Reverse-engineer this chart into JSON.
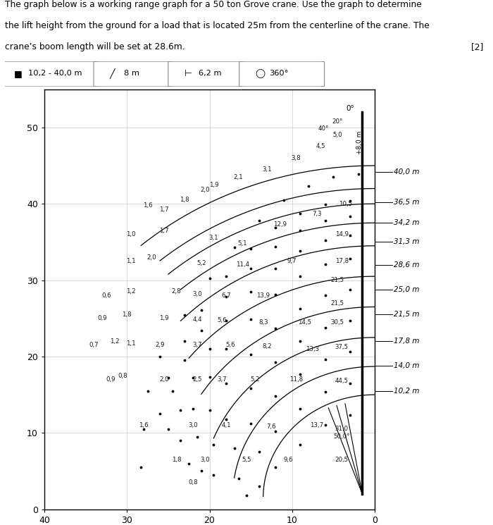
{
  "title_line1": "The graph below is a working range graph for a 50 ton Grove crane. Use the graph to determine",
  "title_line2": "the lift height from the ground for a load that is located 25m from the centerline of the crane. The",
  "title_line3": "crane’s boom length will be set at 28.6m.",
  "title_mark": "[2]",
  "spec1": "10,2 - 40,0 m",
  "spec2": "8 m",
  "spec3": "6,2 m",
  "spec4": "360°",
  "boom_labels": [
    "40,0 m",
    "36,5 m",
    "34,2 m",
    "31,3 m",
    "28,6 m",
    "25,0 m",
    "21,5 m",
    "17,8 m",
    "14,0 m",
    "10,2 m"
  ],
  "boom_y_pos": [
    44.2,
    40.2,
    37.5,
    35.0,
    32.0,
    28.8,
    25.5,
    22.0,
    18.8,
    15.5
  ],
  "curves": [
    {
      "R": 43.5,
      "y_c": 1.5,
      "x_end": 28.3
    },
    {
      "R": 40.5,
      "y_c": 1.5,
      "x_end": 26.0
    },
    {
      "R": 38.5,
      "y_c": 1.5,
      "x_end": 25.0
    },
    {
      "R": 36.0,
      "y_c": 1.5,
      "x_end": 23.5
    },
    {
      "R": 33.0,
      "y_c": 1.5,
      "x_end": 23.5
    },
    {
      "R": 29.0,
      "y_c": 1.5,
      "x_end": 22.5
    },
    {
      "R": 25.0,
      "y_c": 1.5,
      "x_end": 21.0
    },
    {
      "R": 21.0,
      "y_c": 1.5,
      "x_end": 19.5
    },
    {
      "R": 17.2,
      "y_c": 1.5,
      "x_end": 17.0
    },
    {
      "R": 13.5,
      "y_c": 1.5,
      "x_end": 15.5
    }
  ],
  "dots_per_curve": [
    [
      [
        2,
        43.9
      ],
      [
        5,
        43.5
      ],
      [
        8,
        42.3
      ],
      [
        11,
        40.5
      ],
      [
        14,
        37.8
      ],
      [
        17,
        34.3
      ],
      [
        20,
        30.2
      ],
      [
        23,
        25.4
      ],
      [
        26,
        20.0
      ],
      [
        27.5,
        15.5
      ],
      [
        28.0,
        10.5
      ],
      [
        28.3,
        5.5
      ]
    ],
    [
      [
        3,
        40.4
      ],
      [
        6,
        39.9
      ],
      [
        9,
        38.7
      ],
      [
        12,
        36.9
      ],
      [
        15,
        34.1
      ],
      [
        18,
        30.5
      ],
      [
        21,
        26.1
      ],
      [
        23,
        22.0
      ],
      [
        25,
        17.2
      ],
      [
        26.0,
        12.5
      ]
    ],
    [
      [
        3,
        38.4
      ],
      [
        6,
        37.8
      ],
      [
        9,
        36.5
      ],
      [
        12,
        34.4
      ],
      [
        15,
        31.5
      ],
      [
        18,
        27.8
      ],
      [
        21,
        23.4
      ],
      [
        23,
        19.5
      ],
      [
        24.5,
        15.5
      ],
      [
        25.0,
        10.5
      ]
    ],
    [
      [
        3,
        35.9
      ],
      [
        6,
        35.2
      ],
      [
        9,
        33.8
      ],
      [
        12,
        31.5
      ],
      [
        15,
        28.5
      ],
      [
        18,
        24.7
      ],
      [
        20,
        21.0
      ],
      [
        22,
        17.2
      ],
      [
        23.5,
        13.0
      ]
    ],
    [
      [
        3,
        32.8
      ],
      [
        6,
        32.1
      ],
      [
        9,
        30.5
      ],
      [
        12,
        28.1
      ],
      [
        15,
        24.9
      ],
      [
        18,
        21.0
      ],
      [
        20,
        17.3
      ],
      [
        22,
        13.2
      ],
      [
        23.5,
        9.0
      ]
    ],
    [
      [
        3,
        28.8
      ],
      [
        6,
        28.0
      ],
      [
        9,
        26.3
      ],
      [
        12,
        23.7
      ],
      [
        15,
        20.3
      ],
      [
        18,
        16.5
      ],
      [
        20,
        13.0
      ],
      [
        21.5,
        9.5
      ],
      [
        22.5,
        6.0
      ]
    ],
    [
      [
        3,
        24.7
      ],
      [
        6,
        23.8
      ],
      [
        9,
        22.0
      ],
      [
        12,
        19.3
      ],
      [
        15,
        15.8
      ],
      [
        18,
        11.8
      ],
      [
        19.5,
        8.5
      ],
      [
        21.0,
        5.0
      ]
    ],
    [
      [
        3,
        20.6
      ],
      [
        6,
        19.6
      ],
      [
        9,
        17.7
      ],
      [
        12,
        14.8
      ],
      [
        15,
        11.2
      ],
      [
        17,
        8.0
      ],
      [
        19.5,
        4.5
      ]
    ],
    [
      [
        3,
        16.5
      ],
      [
        6,
        15.4
      ],
      [
        9,
        13.2
      ],
      [
        12,
        10.2
      ],
      [
        14,
        7.5
      ],
      [
        16.5,
        4.0
      ]
    ],
    [
      [
        3,
        12.3
      ],
      [
        6,
        11.0
      ],
      [
        9,
        8.5
      ],
      [
        12,
        5.5
      ],
      [
        14,
        3.0
      ],
      [
        15.5,
        1.8
      ]
    ]
  ],
  "annotations": [
    [
      4.5,
      49.0,
      "5,0"
    ],
    [
      6.5,
      47.5,
      "4,5"
    ],
    [
      9.5,
      46.0,
      "3,8"
    ],
    [
      13.0,
      44.5,
      "3,1"
    ],
    [
      16.5,
      43.5,
      "2,1"
    ],
    [
      19.5,
      42.5,
      "1,9"
    ],
    [
      20.5,
      41.8,
      "2,0"
    ],
    [
      23.0,
      40.5,
      "1,8"
    ],
    [
      3.5,
      40.0,
      "10,5"
    ],
    [
      7.0,
      38.7,
      "7,3"
    ],
    [
      27.5,
      39.8,
      "1,6"
    ],
    [
      25.5,
      39.2,
      "1,7"
    ],
    [
      11.5,
      37.3,
      "12,9"
    ],
    [
      4.0,
      36.0,
      "14,9"
    ],
    [
      29.5,
      36.0,
      "1,0"
    ],
    [
      25.5,
      36.5,
      "1,7"
    ],
    [
      19.5,
      35.5,
      "3,1"
    ],
    [
      16.0,
      34.8,
      "5,1"
    ],
    [
      10.0,
      32.5,
      "9,7"
    ],
    [
      4.0,
      32.5,
      "17,8"
    ],
    [
      29.5,
      32.5,
      "1,1"
    ],
    [
      27.0,
      33.0,
      "2,0"
    ],
    [
      21.0,
      32.2,
      "5,2"
    ],
    [
      16.0,
      32.0,
      "11,4"
    ],
    [
      4.5,
      30.0,
      "21,5"
    ],
    [
      32.5,
      28.0,
      "0,6"
    ],
    [
      29.5,
      28.5,
      "1,2"
    ],
    [
      24.0,
      28.5,
      "2,8"
    ],
    [
      21.5,
      28.2,
      "3,0"
    ],
    [
      18.0,
      28.0,
      "6,7"
    ],
    [
      13.5,
      28.0,
      "13,9"
    ],
    [
      4.5,
      27.0,
      "21,5"
    ],
    [
      33.0,
      25.0,
      "0,9"
    ],
    [
      30.0,
      25.5,
      "1,8"
    ],
    [
      25.5,
      25.0,
      "1,9"
    ],
    [
      21.5,
      24.8,
      "4,4"
    ],
    [
      18.5,
      24.7,
      "5,6"
    ],
    [
      13.5,
      24.5,
      "8,3"
    ],
    [
      8.5,
      24.5,
      "14,5"
    ],
    [
      4.5,
      24.5,
      "30,5"
    ],
    [
      34.0,
      21.5,
      "0,7"
    ],
    [
      31.5,
      22.0,
      "1,2"
    ],
    [
      29.5,
      21.7,
      "1,1"
    ],
    [
      26.0,
      21.5,
      "2,9"
    ],
    [
      21.5,
      21.5,
      "3,7"
    ],
    [
      17.5,
      21.5,
      "5,6"
    ],
    [
      13.0,
      21.3,
      "8,2"
    ],
    [
      7.5,
      21.0,
      "13,3"
    ],
    [
      4.0,
      21.2,
      "37,5"
    ],
    [
      32.0,
      17.0,
      "0,9"
    ],
    [
      30.5,
      17.5,
      "0,8"
    ],
    [
      25.5,
      17.0,
      "2,0"
    ],
    [
      21.5,
      17.0,
      "2,5"
    ],
    [
      18.5,
      17.0,
      "3,7"
    ],
    [
      14.5,
      17.0,
      "5,2"
    ],
    [
      9.5,
      17.0,
      "11,8"
    ],
    [
      4.0,
      16.8,
      "44,5"
    ],
    [
      28.0,
      11.0,
      "1,6"
    ],
    [
      22.0,
      11.0,
      "3,0"
    ],
    [
      18.0,
      11.0,
      "4,1"
    ],
    [
      12.5,
      10.8,
      "7,6"
    ],
    [
      7.0,
      11.0,
      "13,7"
    ],
    [
      4.0,
      10.5,
      "31,0"
    ],
    [
      24.0,
      6.5,
      "1,8"
    ],
    [
      20.5,
      6.5,
      "3,0"
    ],
    [
      15.5,
      6.5,
      "5,5"
    ],
    [
      10.5,
      6.5,
      "9,6"
    ],
    [
      4.0,
      6.5,
      "20,5"
    ],
    [
      22.0,
      3.5,
      "0,8"
    ],
    [
      4.5,
      50.8,
      "20°"
    ],
    [
      6.2,
      49.8,
      "40°"
    ],
    [
      4.0,
      9.5,
      "50,0°"
    ]
  ],
  "angle_0_x": 3.0,
  "angle_0_y": 52.5,
  "plus8m_x": 1.8,
  "plus8m_y": 48.0,
  "xlim": [
    0,
    40
  ],
  "ylim": [
    0,
    55
  ],
  "xticks": [
    0,
    10,
    20,
    30,
    40
  ],
  "yticks": [
    0,
    10,
    20,
    30,
    40,
    50
  ]
}
